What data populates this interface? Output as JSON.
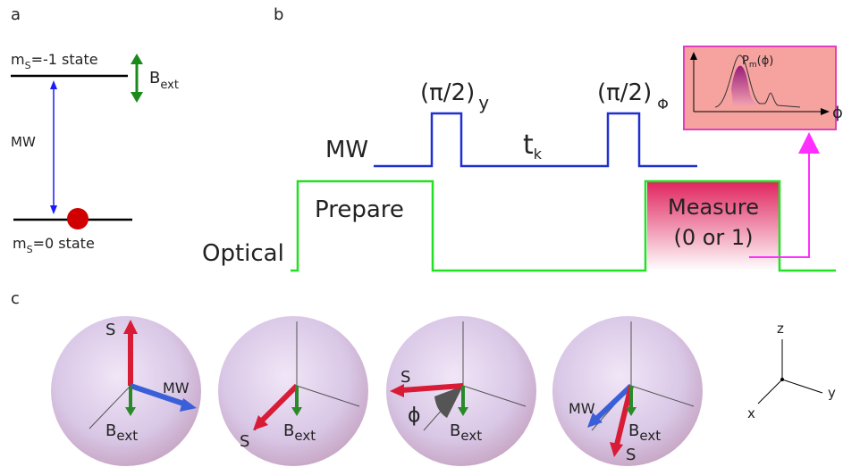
{
  "panel_labels": [
    "a",
    "b",
    "c"
  ],
  "level_diagram": {
    "upper_state": [
      "m",
      "S",
      "=-1 state"
    ],
    "lower_state": [
      "m",
      "S",
      "=0 state"
    ],
    "field": [
      "B",
      "ext"
    ],
    "transition": "MW"
  },
  "pulse_sequence": {
    "pulse_1": [
      "(π/2)",
      "y"
    ],
    "pulse_2": [
      "(π/2)",
      "Φ"
    ],
    "wait": [
      "t",
      "k"
    ],
    "mw_label": "MW",
    "optical_label": "Optical",
    "prepare": "Prepare",
    "measure": [
      "Measure",
      "(0 or 1)"
    ]
  },
  "inset": {
    "y_label": [
      "P",
      "m",
      "(ϕ)"
    ],
    "x_label": "ϕ"
  },
  "spheres": [
    {
      "spin": "S",
      "mw": "MW",
      "field": [
        "B",
        "ext"
      ]
    },
    {
      "spin": "S",
      "field": [
        "B",
        "ext"
      ]
    },
    {
      "spin": "S",
      "angle": "ϕ",
      "field": [
        "B",
        "ext"
      ]
    },
    {
      "spin": "S",
      "mw": "MW",
      "field": [
        "B",
        "ext"
      ]
    }
  ],
  "axes": {
    "z": "z",
    "y": "y",
    "x": "x"
  }
}
